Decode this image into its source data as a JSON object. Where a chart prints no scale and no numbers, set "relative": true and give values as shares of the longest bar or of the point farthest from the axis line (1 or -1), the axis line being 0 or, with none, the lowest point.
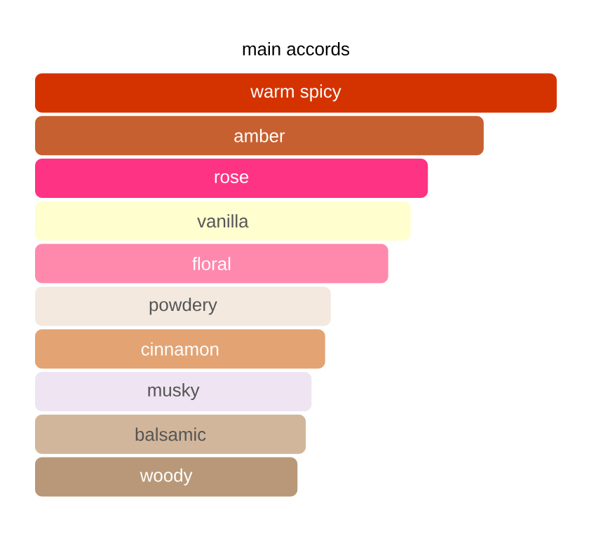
{
  "chart_data": {
    "type": "bar",
    "orientation": "horizontal",
    "relative": true,
    "title": "main accords",
    "categories": [
      "warm spicy",
      "amber",
      "rose",
      "vanilla",
      "floral",
      "powdery",
      "cinnamon",
      "musky",
      "balsamic",
      "woody"
    ],
    "values": [
      1,
      0.86,
      0.753,
      0.72,
      0.677,
      0.567,
      0.556,
      0.53,
      0.519,
      0.503
    ],
    "colors": [
      "#d43300",
      "#c76031",
      "#fe3383",
      "#fffece",
      "#ff89ac",
      "#f3e9df",
      "#e3a373",
      "#efe4f1",
      "#d2b69b",
      "#b89878"
    ]
  }
}
